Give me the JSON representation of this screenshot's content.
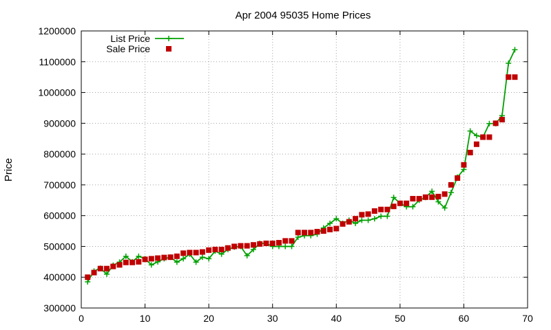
{
  "chart_data": {
    "type": "line",
    "title": "Apr 2004 95035 Home Prices",
    "xlabel": "",
    "ylabel": "Price",
    "xlim": [
      0,
      70
    ],
    "ylim": [
      300000,
      1200000
    ],
    "x_ticks": [
      0,
      10,
      20,
      30,
      40,
      50,
      60,
      70
    ],
    "y_ticks": [
      300000,
      400000,
      500000,
      600000,
      700000,
      800000,
      900000,
      1000000,
      1100000,
      1200000
    ],
    "grid": true,
    "legend_position": "top-left",
    "series": [
      {
        "name": "List Price",
        "style": "line-plus",
        "color": "#00a000",
        "x": [
          1,
          2,
          3,
          4,
          5,
          6,
          7,
          8,
          9,
          10,
          11,
          12,
          13,
          14,
          15,
          16,
          17,
          18,
          19,
          20,
          21,
          22,
          23,
          24,
          25,
          26,
          27,
          28,
          29,
          30,
          31,
          32,
          33,
          34,
          35,
          36,
          37,
          38,
          39,
          40,
          41,
          42,
          43,
          44,
          45,
          46,
          47,
          48,
          49,
          50,
          51,
          52,
          53,
          54,
          55,
          56,
          57,
          58,
          59,
          60,
          61,
          62,
          63,
          64,
          65,
          66,
          67,
          68
        ],
        "values": [
          385000,
          420000,
          429000,
          410000,
          439000,
          449000,
          468000,
          450000,
          468000,
          460000,
          440000,
          450000,
          460000,
          465000,
          449000,
          460000,
          475000,
          449000,
          465000,
          460000,
          485000,
          475000,
          490000,
          498000,
          500000,
          470000,
          490000,
          510000,
          510000,
          500000,
          500000,
          500000,
          500000,
          530000,
          535000,
          535000,
          540000,
          560000,
          575000,
          590000,
          575000,
          585000,
          575000,
          585000,
          585000,
          590000,
          598000,
          598000,
          659000,
          640000,
          629000,
          629000,
          650000,
          659000,
          679000,
          645000,
          625000,
          675000,
          725000,
          750000,
          875000,
          860000,
          855000,
          899000,
          899000,
          925000,
          1095000,
          1139000
        ]
      },
      {
        "name": "Sale Price",
        "style": "square",
        "color": "#c00000",
        "x": [
          1,
          2,
          3,
          4,
          5,
          6,
          7,
          8,
          9,
          10,
          11,
          12,
          13,
          14,
          15,
          16,
          17,
          18,
          19,
          20,
          21,
          22,
          23,
          24,
          25,
          26,
          27,
          28,
          29,
          30,
          31,
          32,
          33,
          34,
          35,
          36,
          37,
          38,
          39,
          40,
          41,
          42,
          43,
          44,
          45,
          46,
          47,
          48,
          49,
          50,
          51,
          52,
          53,
          54,
          55,
          56,
          57,
          58,
          59,
          60,
          61,
          62,
          63,
          64,
          65,
          66,
          67,
          68
        ],
        "values": [
          400000,
          415000,
          428000,
          428000,
          435000,
          440000,
          448000,
          448000,
          450000,
          458000,
          460000,
          462000,
          464000,
          465000,
          468000,
          478000,
          480000,
          480000,
          482000,
          488000,
          490000,
          490000,
          495000,
          500000,
          502000,
          502000,
          505000,
          508000,
          510000,
          510000,
          512000,
          518000,
          518000,
          545000,
          545000,
          545000,
          548000,
          550000,
          555000,
          558000,
          573000,
          580000,
          590000,
          603000,
          605000,
          615000,
          620000,
          620000,
          630000,
          640000,
          640000,
          655000,
          655000,
          660000,
          660000,
          662000,
          670000,
          700000,
          722000,
          765000,
          805000,
          832000,
          855000,
          855000,
          900000,
          912000,
          1050000,
          1050000
        ]
      }
    ]
  }
}
